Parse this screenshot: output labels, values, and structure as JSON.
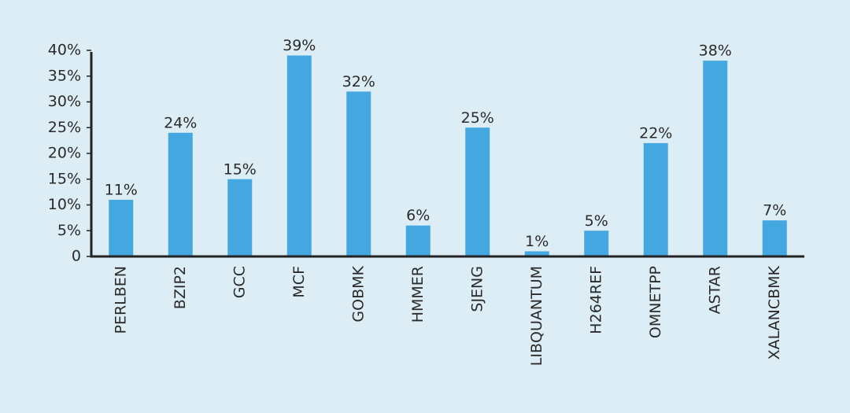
{
  "chart_data": {
    "type": "bar",
    "categories": [
      "PERLBEN",
      "BZIP2",
      "GCC",
      "MCF",
      "GOBMK",
      "HMMER",
      "SJENG",
      "LIBQUANTUM",
      "H264REF",
      "OMNETPP",
      "ASTAR",
      "XALANCBMK"
    ],
    "values": [
      11,
      24,
      15,
      39,
      32,
      6,
      25,
      1,
      5,
      22,
      38,
      7
    ],
    "value_labels": [
      "11%",
      "24%",
      "15%",
      "39%",
      "32%",
      "6%",
      "25%",
      "1%",
      "5%",
      "22%",
      "38%",
      "7%"
    ],
    "color": "#45a7e0",
    "ylim": [
      0,
      40
    ],
    "yticks": [
      0,
      {
        "value": 5,
        "label": "5%"
      },
      {
        "value": 10,
        "label": "10%"
      },
      {
        "value": 15,
        "label": "15%"
      },
      {
        "value": 20,
        "label": "20%"
      },
      {
        "value": 25,
        "label": "25%"
      },
      {
        "value": 30,
        "label": "30%"
      },
      {
        "value": 35,
        "label": "35%"
      },
      {
        "value": 40,
        "label": "40%"
      }
    ],
    "grid": false
  }
}
